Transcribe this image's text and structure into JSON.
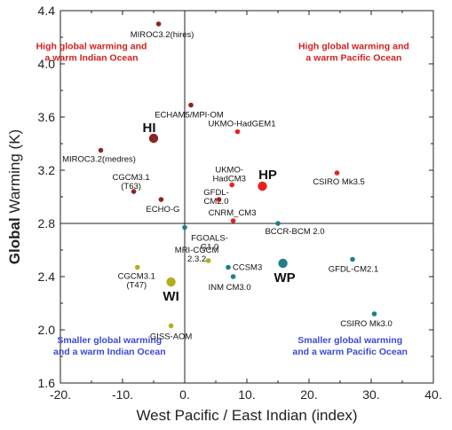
{
  "chart_data": {
    "type": "scatter",
    "xlabel": "West Pacific / East Indian (index)",
    "ylabel_bold": "Global",
    "ylabel_rest": " Warming (K)",
    "xlim": [
      -20,
      40
    ],
    "ylim": [
      1.6,
      4.4
    ],
    "x_ticks": [
      -20,
      -10,
      0,
      10,
      20,
      30,
      40
    ],
    "x_tick_labels": [
      "-20.",
      "-10.",
      "0.",
      "10.",
      "20.",
      "30.",
      "40."
    ],
    "y_ticks": [
      1.6,
      2.0,
      2.4,
      2.8,
      3.2,
      3.6,
      4.0,
      4.4
    ],
    "y_tick_labels": [
      "1.6",
      "2.0",
      "2.4",
      "2.8",
      "3.2",
      "3.6",
      "4.0",
      "4.4"
    ],
    "reference_lines": {
      "x": 0,
      "y": 2.8
    },
    "grid": false,
    "colors": {
      "HI": "#8b2525",
      "HP": "#e8221f",
      "WI": "#b5ad1e",
      "WP": "#1f7f8a",
      "lowQuad": "#3a4ad8",
      "highQuad": "#d42020"
    },
    "quadrant_labels": [
      {
        "id": "q-hi",
        "group": "HI",
        "lines": [
          "High global warming and",
          "a warm Indian Ocean"
        ]
      },
      {
        "id": "q-hp",
        "group": "HP",
        "lines": [
          "High global warming and",
          "a warm Pacific Ocean"
        ]
      },
      {
        "id": "q-wi",
        "group": "WI",
        "lines": [
          "Smaller global warming",
          "and a warm Indian Ocean"
        ]
      },
      {
        "id": "q-wp",
        "group": "WP",
        "lines": [
          "Smaller global warming",
          "and a warm Pacific Ocean"
        ]
      }
    ],
    "points": [
      {
        "name": "MIROC3.2(hires)",
        "x": -4.2,
        "y": 4.3,
        "group": "HI",
        "size": "small"
      },
      {
        "name": "ECHAM5/MPI-OM",
        "x": 1.0,
        "y": 3.69,
        "group": "HI",
        "size": "small"
      },
      {
        "name": "HI",
        "x": -5.0,
        "y": 3.44,
        "group": "HI",
        "size": "big"
      },
      {
        "name": "MIROC3.2(medres)",
        "x": -13.5,
        "y": 3.35,
        "group": "HI",
        "size": "small"
      },
      {
        "name": "CGCM3.1 (T63)",
        "x": -8.2,
        "y": 3.04,
        "group": "HI",
        "size": "small"
      },
      {
        "name": "ECHO-G",
        "x": -3.8,
        "y": 2.98,
        "group": "HI",
        "size": "small"
      },
      {
        "name": "UKMO-HadGEM1",
        "x": 8.5,
        "y": 3.49,
        "group": "HP",
        "size": "small"
      },
      {
        "name": "CSIRO Mk3.5",
        "x": 24.5,
        "y": 3.18,
        "group": "HP",
        "size": "small"
      },
      {
        "name": "UKMO-HadCM3",
        "x": 7.6,
        "y": 3.09,
        "group": "HP",
        "size": "small"
      },
      {
        "name": "HP",
        "x": 12.5,
        "y": 3.08,
        "group": "HP",
        "size": "big"
      },
      {
        "name": "GFDL-CM2.0",
        "x": 5.5,
        "y": 2.98,
        "group": "HP",
        "size": "small"
      },
      {
        "name": "CNRM_CM3",
        "x": 7.8,
        "y": 2.82,
        "group": "HP",
        "size": "small"
      },
      {
        "name": "BCCR-BCM 2.0",
        "x": 15.0,
        "y": 2.8,
        "group": "WP",
        "size": "small"
      },
      {
        "name": "FGOALS-G1.0",
        "x": 0.0,
        "y": 2.77,
        "group": "WP",
        "size": "small"
      },
      {
        "name": "MRI-CGCM 2.3.2",
        "x": 3.8,
        "y": 2.52,
        "group": "WI",
        "size": "small"
      },
      {
        "name": "WP",
        "x": 15.8,
        "y": 2.5,
        "group": "WP",
        "size": "big"
      },
      {
        "name": "GFDL-CM2.1",
        "x": 27.0,
        "y": 2.53,
        "group": "WP",
        "size": "small"
      },
      {
        "name": "CCSM3",
        "x": 7.0,
        "y": 2.47,
        "group": "WP",
        "size": "small"
      },
      {
        "name": "INM CM3.0",
        "x": 7.8,
        "y": 2.4,
        "group": "WP",
        "size": "small"
      },
      {
        "name": "CGCM3.1 (T47)",
        "x": -7.6,
        "y": 2.47,
        "group": "WI",
        "size": "small"
      },
      {
        "name": "WI",
        "x": -2.2,
        "y": 2.36,
        "group": "WI",
        "size": "big"
      },
      {
        "name": "GISS-AOM",
        "x": -2.2,
        "y": 2.03,
        "group": "WI",
        "size": "small"
      },
      {
        "name": "CSIRO Mk3.0",
        "x": 30.5,
        "y": 2.12,
        "group": "WP",
        "size": "small"
      }
    ]
  }
}
